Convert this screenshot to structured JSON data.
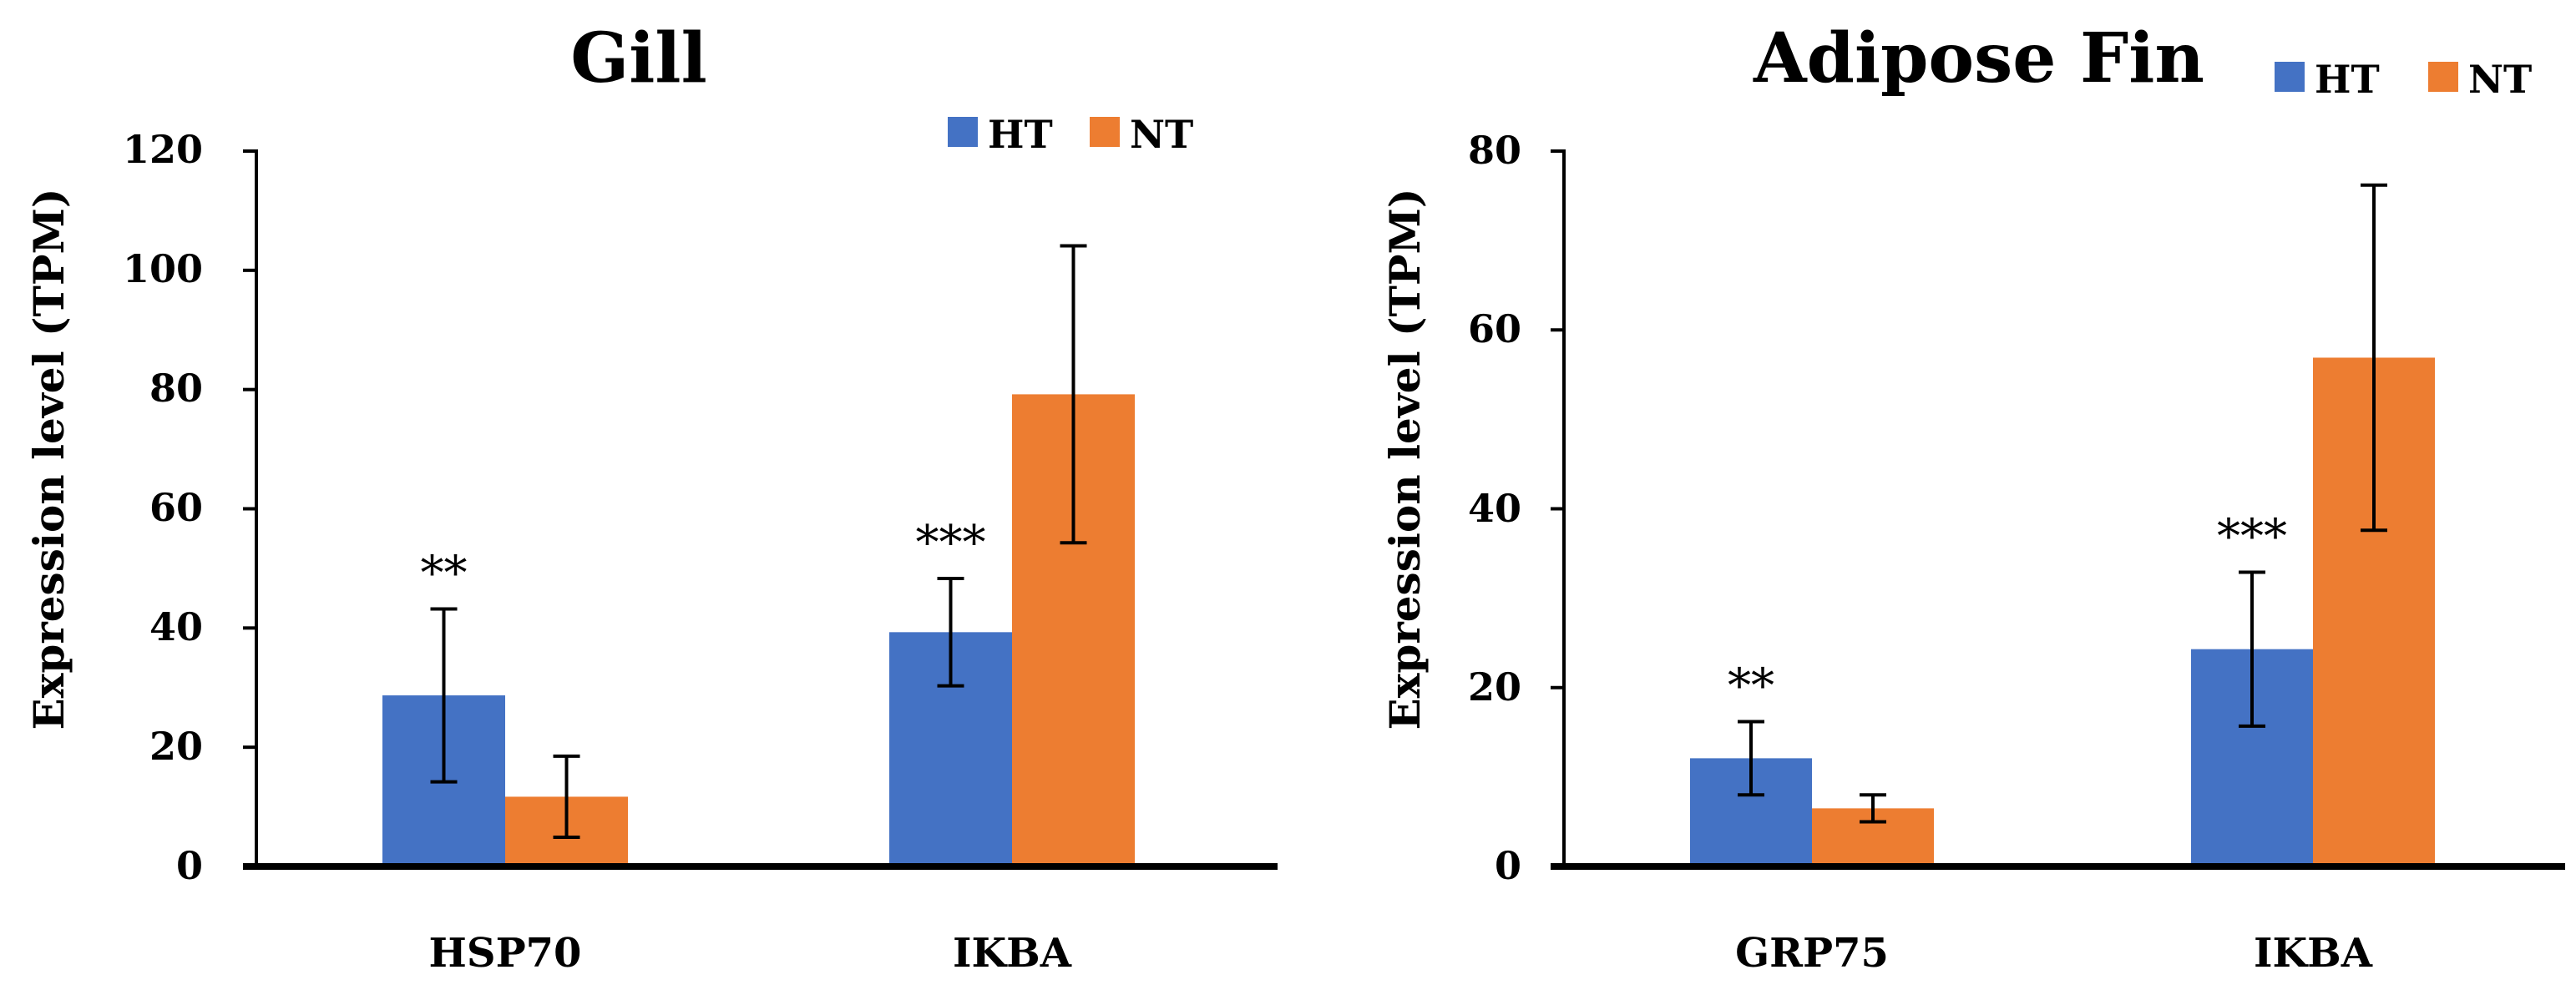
{
  "colors": {
    "HT": "#4472c4",
    "NT": "#ed7d31",
    "axis": "#000000",
    "error_bar": "#000000"
  },
  "chart_data": [
    {
      "type": "bar",
      "title": "Gill",
      "xlabel": "",
      "ylabel": "Expression level (TPM)",
      "ylim": [
        0,
        120
      ],
      "yticks": [
        "0",
        "20",
        "40",
        "60",
        "80",
        "100",
        "120"
      ],
      "categories": [
        "HSP70",
        "IKBA"
      ],
      "series": [
        {
          "name": "HT",
          "values": [
            28.7,
            39.3
          ],
          "errors": [
            14.5,
            9.0
          ]
        },
        {
          "name": "NT",
          "values": [
            11.7,
            79.2
          ],
          "errors": [
            6.8,
            24.9
          ]
        }
      ],
      "significance": [
        "**",
        "***"
      ],
      "legend": [
        "HT",
        "NT"
      ],
      "legend_position": "top-right"
    },
    {
      "type": "bar",
      "title": "Adipose Fin",
      "xlabel": "",
      "ylabel": "Expression level (TPM)",
      "ylim": [
        0,
        80
      ],
      "yticks": [
        "0",
        "20",
        "40",
        "60",
        "80"
      ],
      "categories": [
        "GRP75",
        "IKBA"
      ],
      "series": [
        {
          "name": "HT",
          "values": [
            12.1,
            24.3
          ],
          "errors": [
            4.1,
            8.6
          ]
        },
        {
          "name": "NT",
          "values": [
            6.5,
            56.9
          ],
          "errors": [
            1.5,
            19.3
          ]
        }
      ],
      "significance": [
        "**",
        "***"
      ],
      "legend": [
        "HT",
        "NT"
      ],
      "legend_position": "top-right"
    }
  ]
}
